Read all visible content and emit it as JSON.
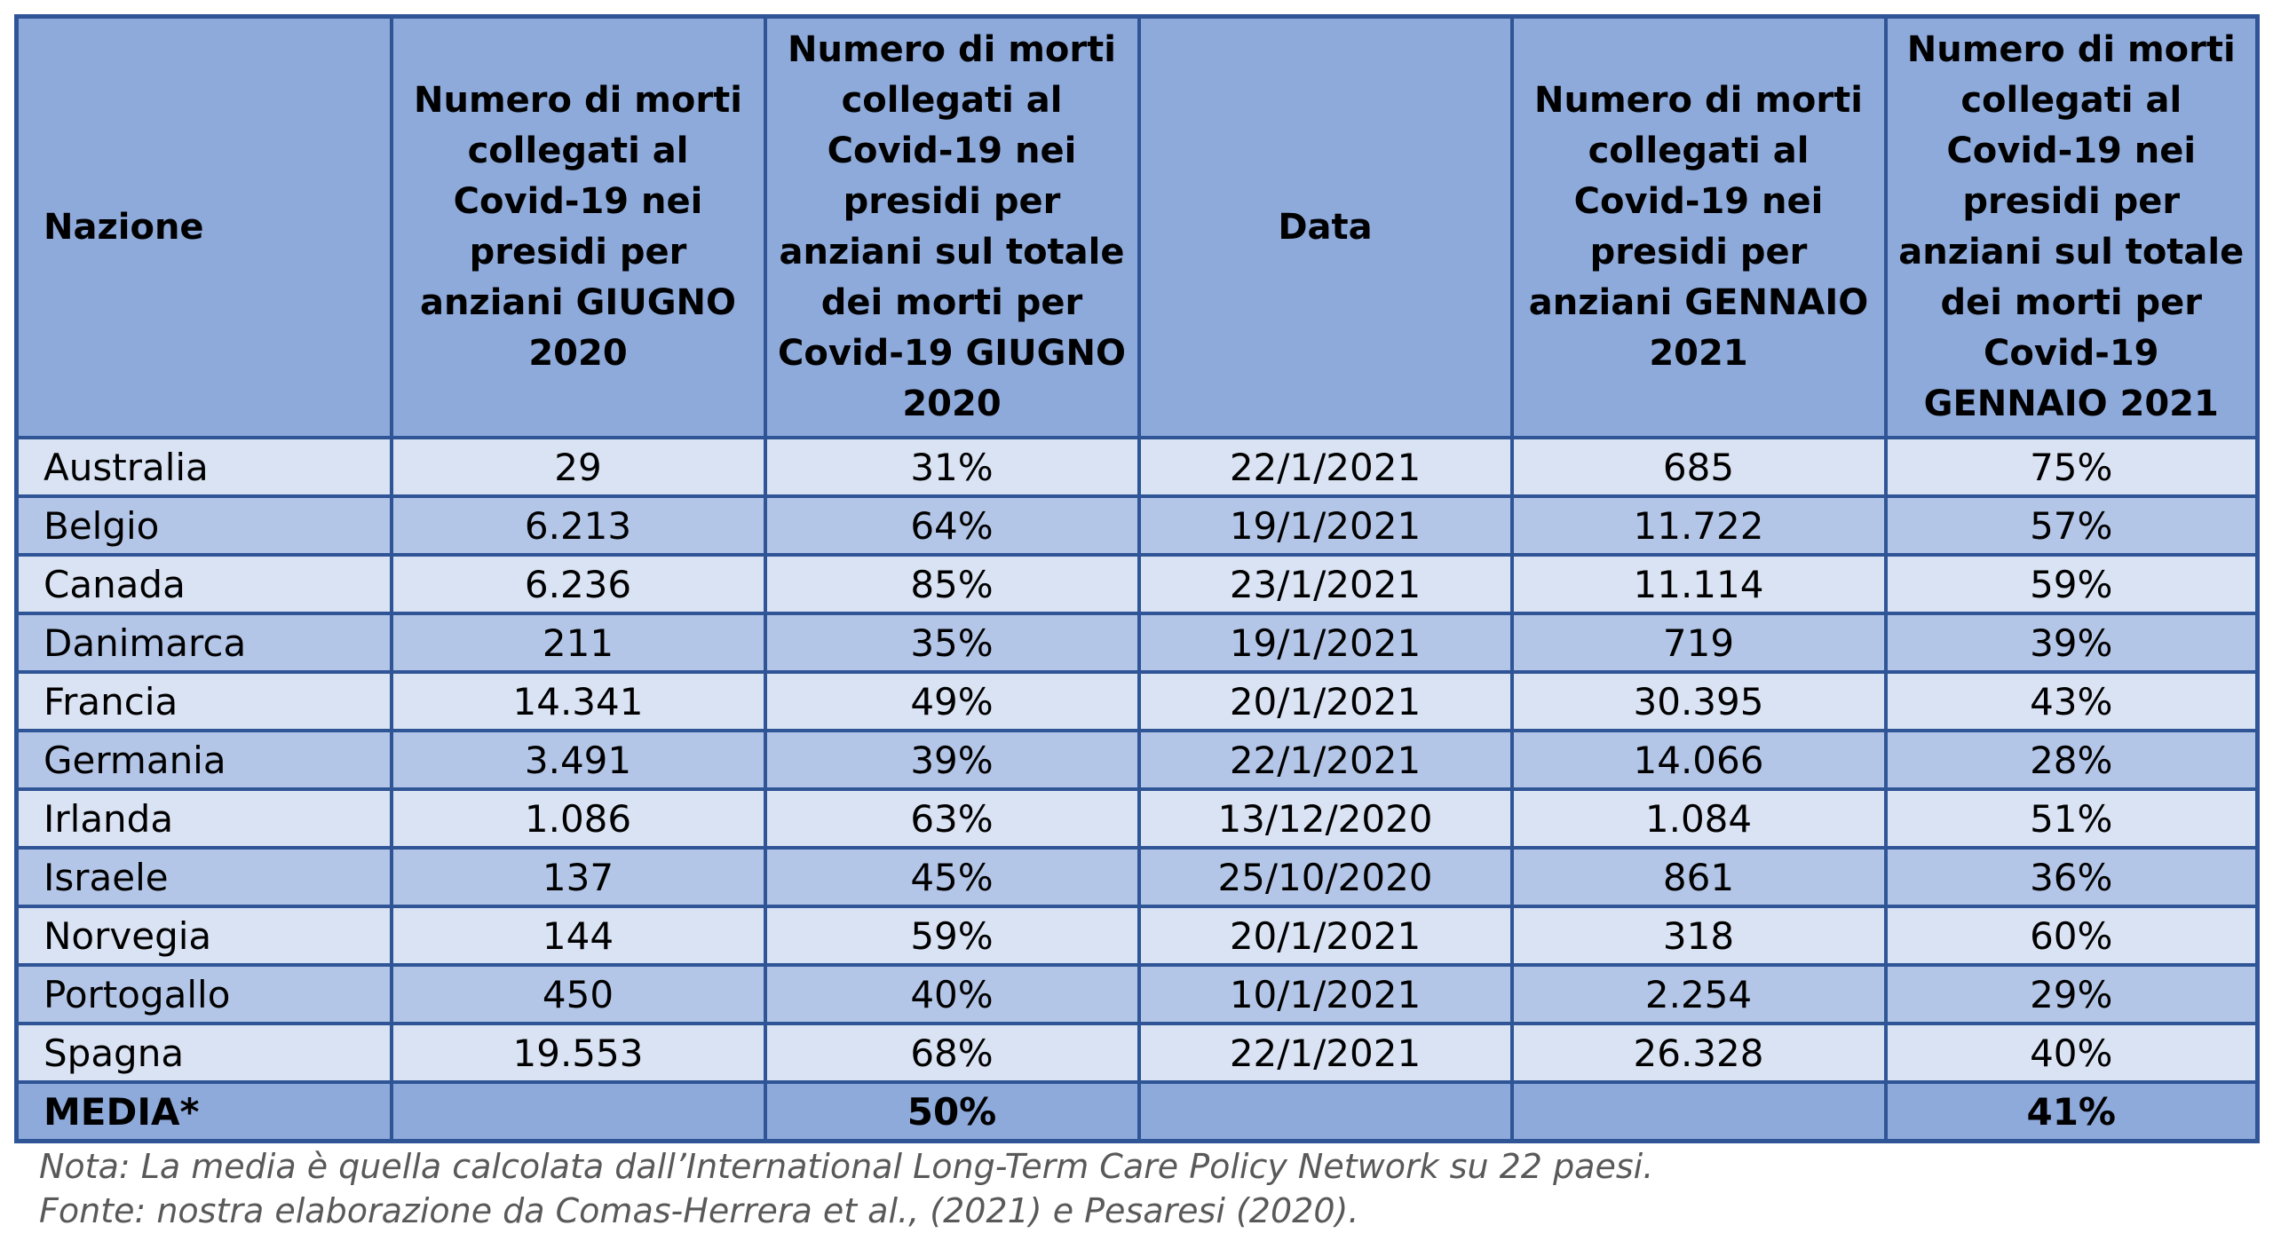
{
  "table": {
    "header": [
      "Nazione",
      "Numero di morti collegati al Covid-19 nei presidi per anziani GIUGNO 2020",
      "Numero di morti collegati al Covid-19 nei presidi per anziani sul totale dei morti per Covid-19 GIUGNO 2020",
      "Data",
      "Numero di morti collegati al Covid-19 nei presidi per anziani GENNAIO 2021",
      "Numero di morti collegati al Covid-19 nei presidi per anziani sul totale dei morti per Covid-19 GENNAIO 2021"
    ],
    "rows": [
      [
        "Australia",
        "29",
        "31%",
        "22/1/2021",
        "685",
        "75%"
      ],
      [
        "Belgio",
        "6.213",
        "64%",
        "19/1/2021",
        "11.722",
        "57%"
      ],
      [
        "Canada",
        "6.236",
        "85%",
        "23/1/2021",
        "11.114",
        "59%"
      ],
      [
        "Danimarca",
        "211",
        "35%",
        "19/1/2021",
        "719",
        "39%"
      ],
      [
        "Francia",
        "14.341",
        "49%",
        "20/1/2021",
        "30.395",
        "43%"
      ],
      [
        "Germania",
        "3.491",
        "39%",
        "22/1/2021",
        "14.066",
        "28%"
      ],
      [
        "Irlanda",
        "1.086",
        "63%",
        "13/12/2020",
        "1.084",
        "51%"
      ],
      [
        "Israele",
        "137",
        "45%",
        "25/10/2020",
        "861",
        "36%"
      ],
      [
        "Norvegia",
        "144",
        "59%",
        "20/1/2021",
        "318",
        "60%"
      ],
      [
        "Portogallo",
        "450",
        "40%",
        "10/1/2021",
        "2.254",
        "29%"
      ],
      [
        "Spagna",
        "19.553",
        "68%",
        "22/1/2021",
        "26.328",
        "40%"
      ]
    ],
    "average": {
      "label": "MEDIA*",
      "june_share": "50%",
      "january_share": "41%"
    }
  },
  "notes": [
    "Nota: La media è quella calcolata dall’International Long-Term Care Policy Network su 22 paesi.",
    "Fonte: nostra elaborazione da Comas-Herrera et al., (2021) e Pesaresi (2020)."
  ]
}
